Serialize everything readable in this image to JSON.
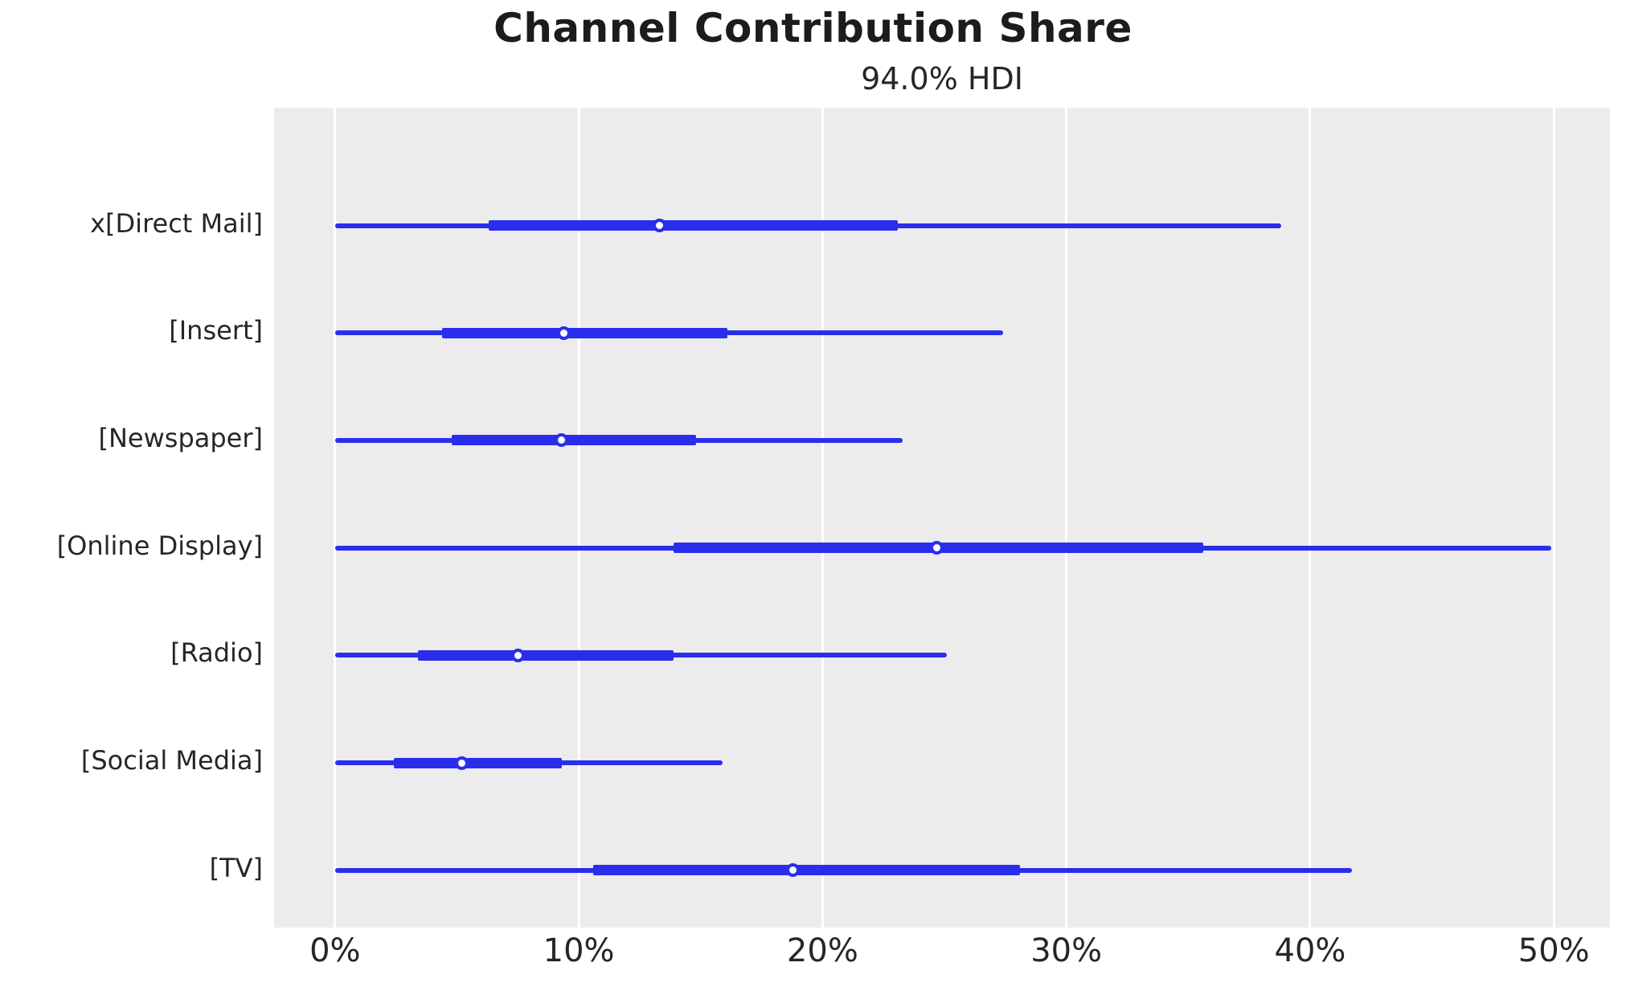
{
  "figure": {
    "title": "Channel Contribution Share",
    "subtitle": "94.0% HDI"
  },
  "colors": {
    "line": "#2a2eec",
    "marker_fill": "#ffffff",
    "plot_background": "#ececec",
    "grid": "#ffffff",
    "text": "#262626"
  },
  "chart_data": {
    "type": "forest",
    "title": "Channel Contribution Share",
    "subtitle": "94.0% HDI",
    "hdi_probability": "94.0%",
    "unit": "%",
    "xlim": [
      -2.5,
      52.3
    ],
    "xtick_values": [
      0,
      10,
      20,
      30,
      40,
      50
    ],
    "xtick_labels": [
      "0%",
      "10%",
      "20%",
      "30%",
      "40%",
      "50%"
    ],
    "grid": "vertical-only",
    "legend": "none",
    "rows": [
      {
        "label": "x[Direct Mail]",
        "hdi_low": 0,
        "hdi_high": 38.8,
        "thick_low": 6.3,
        "thick_high": 23.1,
        "median": 13.3
      },
      {
        "label": "[Insert]",
        "hdi_low": 0,
        "hdi_high": 27.4,
        "thick_low": 4.4,
        "thick_high": 16.1,
        "median": 9.4
      },
      {
        "label": "[Newspaper]",
        "hdi_low": 0,
        "hdi_high": 23.3,
        "thick_low": 4.8,
        "thick_high": 14.8,
        "median": 9.3
      },
      {
        "label": "[Online Display]",
        "hdi_low": 0,
        "hdi_high": 49.9,
        "thick_low": 13.9,
        "thick_high": 35.6,
        "median": 24.7
      },
      {
        "label": "[Radio]",
        "hdi_low": 0,
        "hdi_high": 25.1,
        "thick_low": 3.4,
        "thick_high": 13.9,
        "median": 7.5
      },
      {
        "label": "[Social Media]",
        "hdi_low": 0,
        "hdi_high": 15.9,
        "thick_low": 2.4,
        "thick_high": 9.3,
        "median": 5.2
      },
      {
        "label": "[TV]",
        "hdi_low": 0,
        "hdi_high": 41.7,
        "thick_low": 10.6,
        "thick_high": 28.1,
        "median": 18.8
      }
    ]
  }
}
